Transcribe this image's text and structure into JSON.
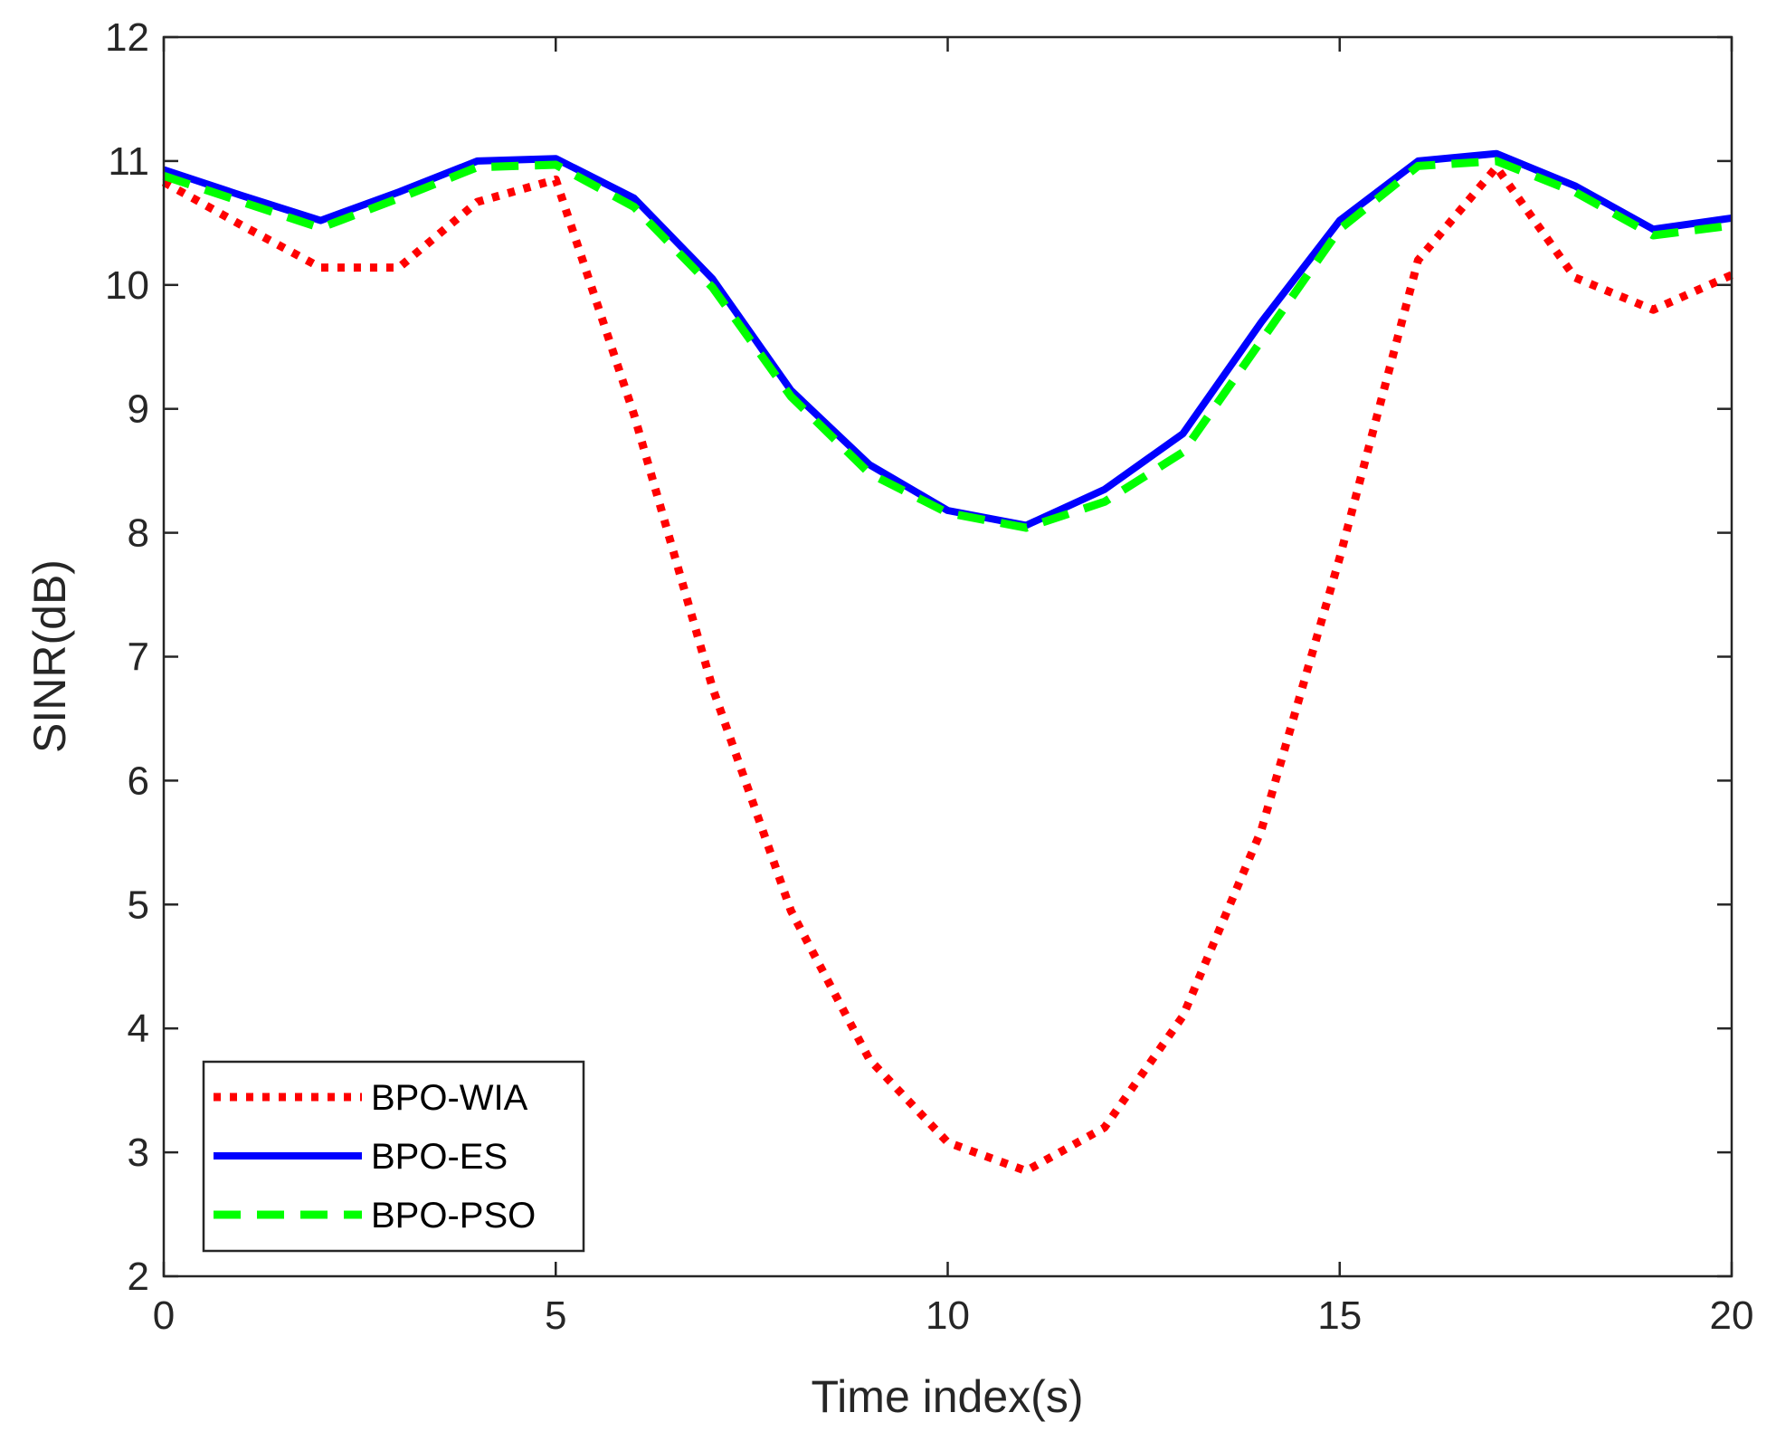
{
  "chart_data": {
    "type": "line",
    "title": "",
    "xlabel": "Time index(s)",
    "ylabel": "SINR(dB)",
    "xlim": [
      0,
      20
    ],
    "ylim": [
      2,
      12
    ],
    "xticks": [
      0,
      5,
      10,
      15,
      20
    ],
    "yticks": [
      2,
      3,
      4,
      5,
      6,
      7,
      8,
      9,
      10,
      11,
      12
    ],
    "xtick_labels": [
      "0",
      "5",
      "10",
      "15",
      "20"
    ],
    "ytick_labels": [
      "2",
      "3",
      "4",
      "5",
      "6",
      "7",
      "8",
      "9",
      "10",
      "11",
      "12"
    ],
    "grid": false,
    "legend_position": "bottom-left",
    "x": [
      0,
      1,
      2,
      3,
      4,
      5,
      6,
      7,
      8,
      9,
      10,
      11,
      12,
      13,
      14,
      15,
      16,
      17,
      18,
      19,
      20
    ],
    "series": [
      {
        "name": "BPO-WIA",
        "color": "#ff0000",
        "style": "dotted",
        "values": [
          10.83,
          10.48,
          10.14,
          10.14,
          10.67,
          10.85,
          8.95,
          6.75,
          4.95,
          3.75,
          3.08,
          2.85,
          3.2,
          4.1,
          5.6,
          7.8,
          10.2,
          10.95,
          10.06,
          9.8,
          10.08
        ]
      },
      {
        "name": "BPO-ES",
        "color": "#0000ff",
        "style": "solid",
        "values": [
          10.93,
          10.72,
          10.52,
          10.75,
          11.0,
          11.02,
          10.7,
          10.05,
          9.15,
          8.55,
          8.18,
          8.06,
          8.35,
          8.8,
          9.7,
          10.52,
          11.0,
          11.06,
          10.8,
          10.45,
          10.54
        ]
      },
      {
        "name": "BPO-PSO",
        "color": "#00ff00",
        "style": "dashed",
        "values": [
          10.88,
          10.67,
          10.46,
          10.7,
          10.95,
          10.97,
          10.63,
          9.98,
          9.1,
          8.48,
          8.16,
          8.04,
          8.25,
          8.65,
          9.55,
          10.45,
          10.96,
          11.0,
          10.75,
          10.4,
          10.48
        ]
      }
    ]
  }
}
